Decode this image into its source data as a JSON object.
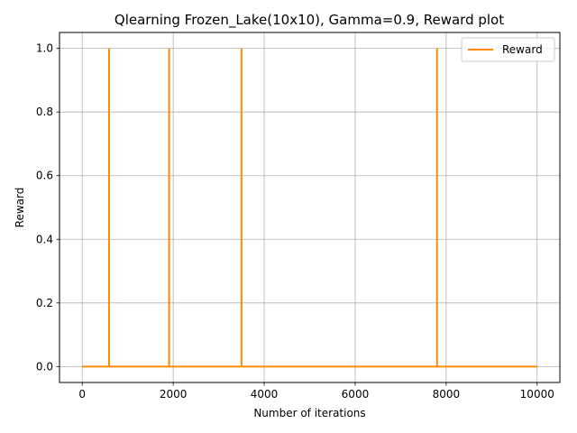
{
  "chart_data": {
    "type": "line",
    "title": "Qlearning Frozen_Lake(10x10),  Gamma=0.9, Reward plot",
    "xlabel": "Number of iterations",
    "ylabel": "Reward",
    "xlim": [
      -500,
      10500
    ],
    "ylim": [
      -0.05,
      1.05
    ],
    "xticks": [
      0,
      2000,
      4000,
      6000,
      8000,
      10000
    ],
    "xtick_labels": [
      "0",
      "2000",
      "4000",
      "6000",
      "8000",
      "10000"
    ],
    "yticks": [
      0.0,
      0.2,
      0.4,
      0.6,
      0.8,
      1.0
    ],
    "ytick_labels": [
      "0.0",
      "0.2",
      "0.4",
      "0.6",
      "0.8",
      "1.0"
    ],
    "grid": true,
    "legend_position": "top-right",
    "series": [
      {
        "name": "Reward",
        "color": "#ff8c00",
        "x": [
          0,
          590,
          590,
          590,
          1910,
          1910,
          1910,
          3500,
          3500,
          3500,
          7800,
          7800,
          7800,
          10000
        ],
        "y": [
          0,
          0,
          1,
          0,
          0,
          1,
          0,
          0,
          1,
          0,
          0,
          1,
          0,
          0
        ]
      }
    ]
  }
}
